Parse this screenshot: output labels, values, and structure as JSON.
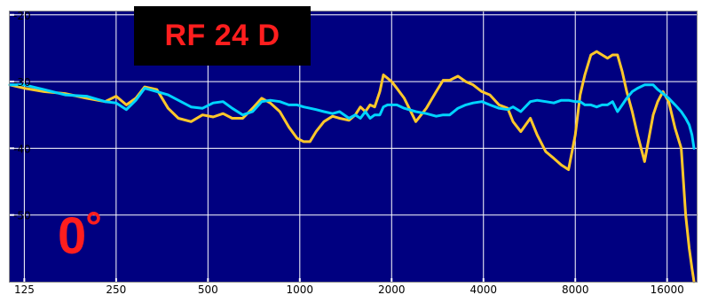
{
  "chart_data": {
    "type": "line",
    "title": "RF 24 D",
    "annotation": "0˚",
    "x_scale": "log",
    "xlim": [
      112,
      20000
    ],
    "ylim": [
      -60,
      -19.5
    ],
    "x_ticks": [
      125,
      250,
      500,
      1000,
      2000,
      4000,
      8000,
      16000
    ],
    "y_ticks": [
      -20,
      -30,
      -40,
      -50
    ],
    "grid": true,
    "background_color": "#000080",
    "grid_color": "#ffffff",
    "series": [
      {
        "color": "#ffc82a",
        "x": [
          112,
          125,
          145,
          170,
          200,
          230,
          250,
          270,
          290,
          310,
          340,
          370,
          400,
          440,
          480,
          520,
          560,
          600,
          650,
          700,
          750,
          800,
          860,
          920,
          980,
          1030,
          1080,
          1130,
          1200,
          1280,
          1350,
          1450,
          1520,
          1580,
          1640,
          1700,
          1760,
          1830,
          1880,
          1940,
          2000,
          2080,
          2200,
          2400,
          2600,
          2800,
          2950,
          3100,
          3300,
          3500,
          3700,
          3950,
          4200,
          4500,
          4800,
          5000,
          5300,
          5700,
          6000,
          6400,
          6800,
          7200,
          7600,
          8000,
          8300,
          8600,
          9000,
          9400,
          9800,
          10200,
          10600,
          11000,
          11400,
          11800,
          12300,
          12800,
          13500,
          14400,
          14900,
          15500,
          16200,
          17000,
          17800,
          18400,
          18900,
          19300,
          19600
        ],
        "y": [
          -30.5,
          -31.0,
          -31.5,
          -31.8,
          -32.5,
          -33.0,
          -32.2,
          -33.5,
          -32.5,
          -30.8,
          -31.2,
          -34.0,
          -35.5,
          -36.0,
          -35.0,
          -35.3,
          -34.8,
          -35.5,
          -35.5,
          -34.0,
          -32.5,
          -33.2,
          -34.5,
          -36.8,
          -38.5,
          -39.0,
          -39.0,
          -37.5,
          -36.0,
          -35.2,
          -35.5,
          -35.8,
          -35.0,
          -33.8,
          -34.5,
          -33.5,
          -33.8,
          -31.5,
          -29.0,
          -29.5,
          -30.0,
          -31.0,
          -32.5,
          -36.0,
          -34.0,
          -31.5,
          -29.8,
          -29.8,
          -29.2,
          -30.0,
          -30.5,
          -31.5,
          -32.0,
          -33.5,
          -34.0,
          -36.0,
          -37.5,
          -35.5,
          -38.0,
          -40.5,
          -41.5,
          -42.5,
          -43.2,
          -38.0,
          -32.0,
          -29.0,
          -26.0,
          -25.5,
          -26.0,
          -26.5,
          -26.0,
          -26.0,
          -28.5,
          -31.5,
          -34.5,
          -38.0,
          -42.0,
          -35.0,
          -33.0,
          -31.5,
          -33.0,
          -37.0,
          -40.0,
          -50.0,
          -55.0,
          -58.0,
          -60.0
        ]
      },
      {
        "color": "#00d4ff",
        "x": [
          112,
          125,
          145,
          170,
          200,
          230,
          250,
          270,
          290,
          310,
          340,
          370,
          400,
          440,
          480,
          520,
          560,
          600,
          650,
          700,
          750,
          800,
          860,
          920,
          980,
          1030,
          1080,
          1130,
          1200,
          1280,
          1350,
          1450,
          1520,
          1580,
          1640,
          1700,
          1760,
          1830,
          1880,
          1940,
          2000,
          2080,
          2200,
          2400,
          2600,
          2800,
          2950,
          3100,
          3300,
          3500,
          3700,
          3950,
          4200,
          4500,
          4800,
          5000,
          5300,
          5700,
          6000,
          6400,
          6800,
          7200,
          7600,
          8000,
          8300,
          8600,
          9000,
          9400,
          9800,
          10200,
          10600,
          11000,
          11400,
          11800,
          12300,
          12800,
          13500,
          14400,
          14900,
          15500,
          16200,
          17000,
          17800,
          18400,
          18900,
          19300,
          19600
        ],
        "y": [
          -30.5,
          -30.5,
          -31.2,
          -32.0,
          -32.2,
          -33.0,
          -33.2,
          -34.2,
          -32.8,
          -31.0,
          -31.5,
          -32.0,
          -32.8,
          -33.8,
          -34.0,
          -33.2,
          -33.0,
          -34.0,
          -35.0,
          -34.5,
          -33.0,
          -32.8,
          -33.0,
          -33.5,
          -33.5,
          -33.8,
          -34.0,
          -34.2,
          -34.5,
          -34.8,
          -34.5,
          -35.5,
          -35.0,
          -35.5,
          -34.5,
          -35.5,
          -35.0,
          -35.0,
          -33.8,
          -33.5,
          -33.5,
          -33.5,
          -34.0,
          -34.5,
          -34.8,
          -35.2,
          -35.0,
          -35.0,
          -34.0,
          -33.5,
          -33.2,
          -33.0,
          -33.5,
          -34.0,
          -34.2,
          -33.8,
          -34.5,
          -33.0,
          -32.8,
          -33.0,
          -33.2,
          -32.8,
          -32.8,
          -33.0,
          -33.0,
          -33.5,
          -33.5,
          -33.8,
          -33.5,
          -33.5,
          -33.0,
          -34.5,
          -33.5,
          -32.5,
          -31.5,
          -31.0,
          -30.5,
          -30.5,
          -31.2,
          -31.8,
          -32.5,
          -33.5,
          -34.5,
          -35.5,
          -36.5,
          -38.0,
          -40.0
        ]
      }
    ]
  }
}
